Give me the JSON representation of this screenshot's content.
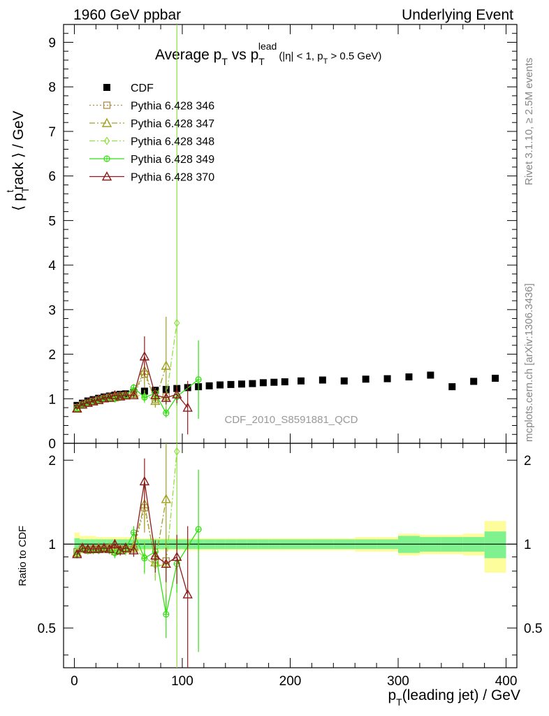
{
  "header": {
    "left_title": "1960 GeV ppbar",
    "right_title": "Underlying Event"
  },
  "side_labels": {
    "rivet": "Rivet 3.1.10, ≥ 2.5M events",
    "mcplots": "mcplots.cern.ch [arXiv:1306.3436]"
  },
  "chart_data": [
    {
      "type": "scatter",
      "title": "Average p_T vs p_T^lead (|η| < 1, p_T > 0.5 GeV)",
      "title_parts": {
        "main1": "Average p",
        "sub1": "T",
        "main2": " vs p",
        "sub2": "T",
        "sup2": "lead",
        "cut": "(|η| < 1, p",
        "cut_sub": "T",
        "cut_end": " > 0.5 GeV)"
      },
      "ylabel": "⟨ p_T^t rack ⟩ / GeV",
      "ylabel_parts": {
        "open": "⟨ p",
        "sub": "T",
        "sup": "t",
        "rest": "rack ⟩ / GeV"
      },
      "watermark": "CDF_2010_S8591881_QCD",
      "xlim": [
        -10,
        410
      ],
      "ylim": [
        0,
        9.4
      ],
      "yticks": [
        0,
        1,
        2,
        3,
        4,
        5,
        6,
        7,
        8,
        9
      ],
      "legend_position": "top-left",
      "series": [
        {
          "name": "CDF",
          "color": "#000000",
          "marker": "square",
          "line": "none",
          "x": [
            2.5,
            7.5,
            12.5,
            17.5,
            22.5,
            27.5,
            32.5,
            37.5,
            42.5,
            47.5,
            55,
            65,
            75,
            85,
            95,
            105,
            115,
            125,
            135,
            145,
            155,
            165,
            175,
            185,
            195,
            210,
            230,
            250,
            270,
            290,
            310,
            330,
            350,
            370,
            390
          ],
          "y": [
            0.85,
            0.9,
            0.95,
            0.98,
            1.01,
            1.04,
            1.06,
            1.08,
            1.1,
            1.11,
            1.14,
            1.17,
            1.19,
            1.21,
            1.23,
            1.25,
            1.27,
            1.29,
            1.31,
            1.32,
            1.33,
            1.34,
            1.36,
            1.37,
            1.38,
            1.4,
            1.42,
            1.4,
            1.44,
            1.45,
            1.49,
            1.53,
            1.27,
            1.39,
            1.46
          ]
        },
        {
          "name": "Pythia 6.428 346",
          "color": "#b08a4a",
          "marker": "open-square",
          "line": "dotted",
          "x": [
            2.5,
            7.5,
            12.5,
            17.5,
            22.5,
            27.5,
            32.5,
            37.5,
            42.5,
            47.5,
            55,
            65,
            75,
            85
          ],
          "y": [
            0.8,
            0.86,
            0.9,
            0.94,
            0.97,
            1.0,
            1.03,
            1.02,
            1.06,
            1.07,
            1.1,
            1.55,
            0.98,
            1.05
          ],
          "err": [
            0.03,
            0.03,
            0.03,
            0.03,
            0.03,
            0.03,
            0.03,
            0.04,
            0.04,
            0.05,
            0.06,
            0.3,
            0.15,
            0.2
          ]
        },
        {
          "name": "Pythia 6.428 347",
          "color": "#a0a020",
          "marker": "open-triangle",
          "line": "dashdot",
          "x": [
            2.5,
            7.5,
            12.5,
            17.5,
            22.5,
            27.5,
            32.5,
            37.5,
            42.5,
            47.5,
            55,
            65,
            75,
            85
          ],
          "y": [
            0.79,
            0.87,
            0.91,
            0.94,
            0.98,
            1.01,
            1.03,
            1.04,
            1.06,
            1.07,
            1.12,
            1.62,
            0.95,
            1.74
          ],
          "err": [
            0.03,
            0.03,
            0.03,
            0.03,
            0.03,
            0.03,
            0.03,
            0.04,
            0.04,
            0.05,
            0.06,
            0.3,
            0.15,
            1.1
          ]
        },
        {
          "name": "Pythia 6.428 348",
          "color": "#90e040",
          "marker": "open-diamond",
          "line": "dashdot",
          "x": [
            2.5,
            7.5,
            12.5,
            17.5,
            22.5,
            27.5,
            32.5,
            37.5,
            42.5,
            47.5,
            55,
            65,
            75,
            85,
            95
          ],
          "y": [
            0.8,
            0.86,
            0.9,
            0.94,
            0.97,
            1.0,
            1.03,
            1.0,
            1.04,
            1.06,
            1.1,
            1.05,
            1.0,
            1.02,
            2.7
          ],
          "err": [
            0.03,
            0.03,
            0.03,
            0.03,
            0.03,
            0.03,
            0.03,
            0.04,
            0.04,
            0.05,
            0.06,
            0.15,
            0.12,
            0.2,
            9.0
          ]
        },
        {
          "name": "Pythia 6.428 349",
          "color": "#30e010",
          "marker": "open-circle-cross",
          "line": "solid",
          "x": [
            2.5,
            7.5,
            12.5,
            17.5,
            22.5,
            27.5,
            32.5,
            37.5,
            42.5,
            47.5,
            55,
            65,
            75,
            85,
            95,
            115
          ],
          "y": [
            0.78,
            0.86,
            0.9,
            0.93,
            0.96,
            1.0,
            1.01,
            1.0,
            1.05,
            1.07,
            1.25,
            1.03,
            1.12,
            0.68,
            1.05,
            1.43
          ],
          "err": [
            0.03,
            0.03,
            0.03,
            0.03,
            0.03,
            0.03,
            0.03,
            0.04,
            0.04,
            0.05,
            0.08,
            0.1,
            0.12,
            0.1,
            0.2,
            0.88
          ]
        },
        {
          "name": "Pythia 6.428 370",
          "color": "#8b1a1a",
          "marker": "open-triangle",
          "line": "solid",
          "x": [
            2.5,
            7.5,
            12.5,
            17.5,
            22.5,
            27.5,
            32.5,
            37.5,
            42.5,
            47.5,
            55,
            65,
            75,
            85,
            95,
            105
          ],
          "y": [
            0.78,
            0.87,
            0.91,
            0.94,
            0.97,
            1.01,
            1.02,
            1.08,
            1.05,
            1.08,
            1.08,
            1.95,
            1.08,
            1.02,
            1.1,
            0.8
          ],
          "err": [
            0.03,
            0.03,
            0.03,
            0.03,
            0.03,
            0.03,
            0.03,
            0.04,
            0.04,
            0.05,
            0.06,
            0.45,
            0.15,
            0.15,
            0.2,
            0.6
          ]
        }
      ]
    },
    {
      "type": "scatter",
      "ylabel": "Ratio to CDF",
      "xlabel": "p_T(leading jet) / GeV",
      "xlabel_parts": {
        "p": "p",
        "sub": "T",
        "rest": "(leading jet) / GeV"
      },
      "xlim": [
        -10,
        410
      ],
      "ylim": [
        0.36,
        2.3
      ],
      "yticks": [
        0.5,
        1,
        2
      ],
      "ytick_labels": [
        "0.5",
        "1",
        "2"
      ],
      "xticks": [
        0,
        100,
        200,
        300,
        400
      ],
      "xtick_labels": [
        "0",
        "100",
        "200",
        "300",
        "400"
      ],
      "reference_line": 1,
      "bands": {
        "x_low": [
          0,
          5,
          10,
          15,
          20,
          25,
          30,
          35,
          40,
          45,
          50,
          60,
          70,
          80,
          90,
          100,
          110,
          120,
          130,
          140,
          150,
          160,
          170,
          180,
          190,
          200,
          220,
          240,
          260,
          280,
          300,
          320,
          340,
          360,
          380
        ],
        "x_high": [
          5,
          10,
          15,
          20,
          25,
          30,
          35,
          40,
          45,
          50,
          60,
          70,
          80,
          90,
          100,
          110,
          120,
          130,
          140,
          150,
          160,
          170,
          180,
          190,
          200,
          220,
          240,
          260,
          280,
          300,
          320,
          340,
          360,
          380,
          400
        ],
        "stat": [
          0.05,
          0.04,
          0.04,
          0.04,
          0.04,
          0.04,
          0.04,
          0.04,
          0.04,
          0.04,
          0.04,
          0.04,
          0.04,
          0.04,
          0.04,
          0.04,
          0.04,
          0.04,
          0.04,
          0.04,
          0.04,
          0.04,
          0.04,
          0.04,
          0.04,
          0.04,
          0.04,
          0.04,
          0.04,
          0.04,
          0.07,
          0.06,
          0.06,
          0.06,
          0.11
        ],
        "total": [
          0.1,
          0.07,
          0.07,
          0.07,
          0.06,
          0.06,
          0.06,
          0.06,
          0.06,
          0.06,
          0.06,
          0.05,
          0.05,
          0.05,
          0.05,
          0.05,
          0.05,
          0.05,
          0.05,
          0.05,
          0.05,
          0.05,
          0.05,
          0.05,
          0.05,
          0.05,
          0.05,
          0.05,
          0.06,
          0.06,
          0.09,
          0.08,
          0.08,
          0.09,
          0.21
        ],
        "stat_color": "#7ff28f",
        "total_color": "#fdfd9b"
      },
      "series": [
        {
          "name": "Pythia 6.428 346",
          "color": "#b08a4a",
          "marker": "open-square",
          "line": "dotted",
          "x": [
            2.5,
            7.5,
            12.5,
            17.5,
            22.5,
            27.5,
            32.5,
            37.5,
            42.5,
            47.5,
            55,
            65,
            75,
            85
          ],
          "y": [
            0.94,
            0.96,
            0.95,
            0.96,
            0.96,
            0.96,
            0.97,
            0.94,
            0.96,
            0.96,
            0.96,
            1.35,
            0.88,
            0.87
          ],
          "err": [
            0.03,
            0.03,
            0.03,
            0.03,
            0.03,
            0.03,
            0.03,
            0.04,
            0.04,
            0.04,
            0.05,
            0.25,
            0.12,
            0.15
          ]
        },
        {
          "name": "Pythia 6.428 347",
          "color": "#a0a020",
          "marker": "open-triangle",
          "line": "dashdot",
          "x": [
            2.5,
            7.5,
            12.5,
            17.5,
            22.5,
            27.5,
            32.5,
            37.5,
            42.5,
            47.5,
            55,
            65,
            75,
            85
          ],
          "y": [
            0.93,
            0.97,
            0.96,
            0.96,
            0.97,
            0.97,
            0.97,
            0.96,
            0.96,
            0.96,
            0.98,
            1.39,
            0.86,
            1.45
          ],
          "err": [
            0.03,
            0.03,
            0.03,
            0.03,
            0.03,
            0.03,
            0.03,
            0.04,
            0.04,
            0.04,
            0.05,
            0.25,
            0.12,
            0.9
          ]
        },
        {
          "name": "Pythia 6.428 348",
          "color": "#90e040",
          "marker": "open-diamond",
          "line": "dashdot",
          "x": [
            2.5,
            7.5,
            12.5,
            17.5,
            22.5,
            27.5,
            32.5,
            37.5,
            42.5,
            47.5,
            55,
            65,
            75,
            85,
            95
          ],
          "y": [
            0.94,
            0.96,
            0.95,
            0.96,
            0.96,
            0.96,
            0.97,
            0.93,
            0.95,
            0.95,
            0.96,
            0.9,
            0.84,
            0.84,
            2.15
          ],
          "err": [
            0.03,
            0.03,
            0.03,
            0.03,
            0.03,
            0.03,
            0.03,
            0.04,
            0.04,
            0.04,
            0.05,
            0.12,
            0.1,
            0.15,
            6.0
          ]
        },
        {
          "name": "Pythia 6.428 349",
          "color": "#30e010",
          "marker": "open-circle-cross",
          "line": "solid",
          "x": [
            2.5,
            7.5,
            12.5,
            17.5,
            22.5,
            27.5,
            32.5,
            37.5,
            42.5,
            47.5,
            55,
            65,
            75,
            85,
            95,
            115
          ],
          "y": [
            0.92,
            0.96,
            0.95,
            0.95,
            0.95,
            0.96,
            0.95,
            0.93,
            0.95,
            0.96,
            1.1,
            0.89,
            0.94,
            0.56,
            0.85,
            1.13
          ],
          "err": [
            0.03,
            0.03,
            0.03,
            0.03,
            0.03,
            0.03,
            0.03,
            0.04,
            0.04,
            0.04,
            0.06,
            0.1,
            0.1,
            0.1,
            0.18,
            0.72
          ]
        },
        {
          "name": "Pythia 6.428 370",
          "color": "#8b1a1a",
          "marker": "open-triangle",
          "line": "solid",
          "x": [
            2.5,
            7.5,
            12.5,
            17.5,
            22.5,
            27.5,
            32.5,
            37.5,
            42.5,
            47.5,
            55,
            65,
            75,
            85,
            95,
            105
          ],
          "y": [
            0.92,
            0.97,
            0.96,
            0.96,
            0.96,
            0.97,
            0.96,
            1.0,
            0.95,
            0.97,
            0.95,
            1.68,
            0.91,
            0.85,
            0.9,
            0.66
          ],
          "err": [
            0.03,
            0.03,
            0.03,
            0.03,
            0.03,
            0.03,
            0.03,
            0.04,
            0.04,
            0.04,
            0.05,
            0.35,
            0.12,
            0.12,
            0.18,
            0.5
          ]
        }
      ]
    }
  ]
}
